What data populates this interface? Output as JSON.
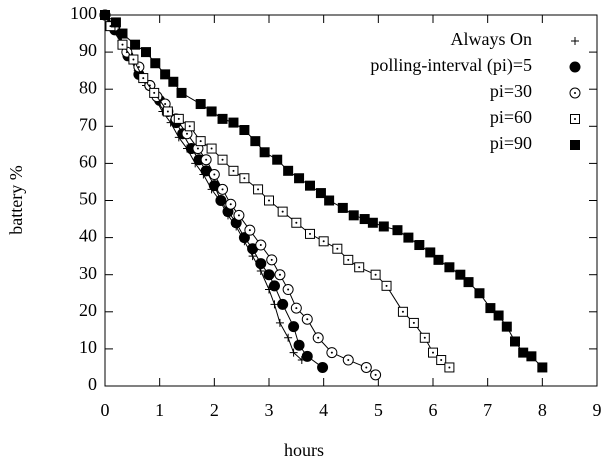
{
  "chart_data": {
    "type": "line",
    "xlabel": "hours",
    "ylabel": "battery %",
    "xlim": [
      0,
      9
    ],
    "ylim": [
      0,
      100
    ],
    "xticks": [
      0,
      1,
      2,
      3,
      4,
      5,
      6,
      7,
      8,
      9
    ],
    "yticks": [
      0,
      10,
      20,
      30,
      40,
      50,
      60,
      70,
      80,
      90,
      100
    ],
    "legend": "top-right",
    "series": [
      {
        "name": "Always On",
        "color": "#000000",
        "marker": "plus",
        "x": [
          0,
          0.15,
          0.3,
          0.45,
          0.6,
          0.75,
          0.9,
          1.05,
          1.2,
          1.35,
          1.5,
          1.65,
          1.8,
          1.95,
          2.1,
          2.25,
          2.4,
          2.55,
          2.7,
          2.85,
          3.0,
          3.1,
          3.2,
          3.35,
          3.45,
          3.6
        ],
        "values": [
          100,
          97,
          93,
          89,
          85,
          81,
          78,
          74,
          71,
          67,
          64,
          60,
          57,
          53,
          50,
          46,
          43,
          39,
          35,
          31,
          26,
          22,
          17,
          13,
          9,
          7
        ]
      },
      {
        "name": "polling-interval (pi)=5",
        "color": "#000000",
        "marker": "circle",
        "x": [
          0,
          0.18,
          0.42,
          0.62,
          0.82,
          1.0,
          1.15,
          1.3,
          1.42,
          1.58,
          1.72,
          1.85,
          2.0,
          2.12,
          2.25,
          2.4,
          2.55,
          2.7,
          2.85,
          3.0,
          3.1,
          3.25,
          3.45,
          3.55,
          3.7,
          3.98
        ],
        "values": [
          100,
          96,
          89,
          84,
          81,
          77,
          74,
          71,
          68,
          64,
          61,
          58,
          54,
          50,
          47,
          44,
          40,
          37,
          33,
          30,
          27,
          22,
          16,
          11,
          8,
          5
        ]
      },
      {
        "name": "pi=30",
        "color": "#000000",
        "marker": "circle-dot",
        "x": [
          0,
          0.18,
          0.4,
          0.62,
          0.82,
          0.95,
          1.1,
          1.3,
          1.5,
          1.7,
          1.85,
          2.0,
          2.15,
          2.3,
          2.45,
          2.65,
          2.85,
          3.05,
          3.2,
          3.35,
          3.5,
          3.7,
          3.9,
          4.15,
          4.45,
          4.78,
          4.95
        ],
        "values": [
          100,
          97,
          90,
          86,
          81,
          78,
          76,
          72,
          68,
          64,
          61,
          57,
          53,
          49,
          46,
          42,
          38,
          34,
          30,
          26,
          21,
          18,
          13,
          9,
          7,
          5,
          3
        ]
      },
      {
        "name": "pi=60",
        "color": "#000000",
        "marker": "square-dot",
        "x": [
          0,
          0.1,
          0.32,
          0.52,
          0.7,
          0.9,
          1.15,
          1.35,
          1.55,
          1.75,
          1.95,
          2.15,
          2.35,
          2.55,
          2.8,
          3.0,
          3.25,
          3.5,
          3.75,
          4.0,
          4.25,
          4.45,
          4.65,
          4.95,
          5.15,
          5.45,
          5.65,
          5.85,
          6.0,
          6.15,
          6.3
        ],
        "values": [
          100,
          97,
          92,
          88,
          83,
          79,
          74,
          72,
          70,
          66,
          64,
          61,
          58,
          56,
          53,
          50,
          47,
          44,
          41,
          39,
          37,
          34,
          32,
          30,
          27,
          20,
          17,
          13,
          9,
          7,
          5
        ]
      },
      {
        "name": "pi=90",
        "color": "#000000",
        "marker": "square",
        "x": [
          0,
          0.2,
          0.32,
          0.55,
          0.75,
          0.92,
          1.1,
          1.25,
          1.4,
          1.75,
          1.95,
          2.15,
          2.35,
          2.55,
          2.75,
          2.92,
          3.15,
          3.35,
          3.55,
          3.75,
          3.95,
          4.1,
          4.35,
          4.55,
          4.75,
          4.9,
          5.1,
          5.35,
          5.55,
          5.75,
          5.95,
          6.1,
          6.3,
          6.5,
          6.65,
          6.85,
          7.05,
          7.2,
          7.35,
          7.5,
          7.65,
          7.8,
          8.0
        ],
        "values": [
          100,
          98,
          95,
          92,
          90,
          87,
          84,
          82,
          79,
          76,
          74,
          72,
          71,
          69,
          66,
          63,
          61,
          58,
          56,
          54,
          52,
          50,
          48,
          46,
          45,
          44,
          43,
          42,
          40,
          38,
          36,
          34,
          32,
          30,
          28,
          25,
          21,
          19,
          16,
          12,
          9,
          8,
          5
        ]
      }
    ]
  }
}
